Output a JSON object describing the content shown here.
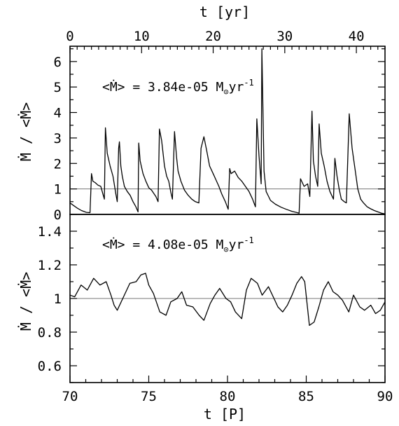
{
  "chart_data": [
    {
      "type": "line",
      "panel": "top",
      "xlabel": "t [yr]",
      "xlim": [
        0,
        44
      ],
      "ylabel": "Ṁ / <Ṁ>",
      "ylim": [
        0,
        6.6
      ],
      "yticks": [
        0,
        1,
        2,
        3,
        4,
        5,
        6
      ],
      "top_xticks": [
        0,
        10,
        20,
        30,
        40
      ],
      "reference_line": 1,
      "annotation": {
        "prefix": "<Ṁ> = 3.84e-05 M",
        "sub": "⊙",
        "unit": "yr",
        "exp": "-1"
      },
      "series": [
        {
          "x": [
            0,
            0.5,
            1.0,
            1.6,
            2.3,
            2.8,
            3.0,
            3.2,
            3.5,
            3.9,
            4.3,
            4.5,
            4.8,
            4.95,
            5.2,
            5.6,
            6.0,
            6.4,
            6.6,
            6.8,
            6.9,
            7.1,
            7.3,
            7.6,
            8.0,
            8.4,
            8.8,
            9.2,
            9.5,
            9.6,
            9.8,
            10.2,
            10.6,
            11.0,
            11.4,
            12.0,
            12.3,
            12.5,
            12.8,
            13.2,
            13.5,
            13.8,
            14.1,
            14.3,
            14.6,
            14.9,
            15.1,
            15.5,
            16.0,
            16.5,
            17.0,
            17.5,
            18.0,
            18.3,
            18.7,
            19.1,
            19.5,
            20.0,
            20.4,
            20.8,
            21.2,
            21.7,
            22.1,
            22.3,
            22.5,
            23.0,
            23.5,
            24.0,
            24.5,
            25.0,
            25.5,
            25.9,
            26.1,
            26.4,
            26.7,
            26.8,
            27.1,
            27.4,
            28.0,
            28.7,
            29.5,
            30.2,
            31.0,
            31.6,
            32.0,
            32.2,
            32.7,
            33.2,
            33.5,
            33.8,
            34.0,
            34.3,
            34.6,
            34.8,
            35.1,
            35.5,
            35.9,
            36.3,
            36.8,
            37.0,
            37.3,
            37.6,
            37.9,
            38.3,
            38.6,
            39.0,
            39.4,
            39.9,
            40.2,
            40.6,
            41.0,
            41.5,
            42.0,
            42.5,
            43.0,
            43.5,
            44.0
          ],
          "y": [
            0.45,
            0.35,
            0.25,
            0.15,
            0.08,
            0.07,
            1.6,
            1.3,
            1.25,
            1.15,
            1.1,
            0.9,
            0.6,
            3.4,
            2.4,
            1.9,
            1.5,
            0.8,
            0.5,
            2.6,
            2.85,
            1.9,
            1.5,
            1.1,
            0.9,
            0.75,
            0.5,
            0.3,
            0.1,
            2.8,
            2.1,
            1.6,
            1.3,
            1.05,
            0.95,
            0.7,
            0.5,
            3.35,
            2.9,
            1.9,
            1.5,
            1.3,
            0.85,
            0.6,
            3.25,
            2.2,
            1.7,
            1.3,
            0.95,
            0.75,
            0.6,
            0.5,
            0.45,
            2.6,
            3.05,
            2.5,
            1.9,
            1.6,
            1.35,
            1.1,
            0.8,
            0.5,
            0.2,
            1.8,
            1.6,
            1.7,
            1.45,
            1.3,
            1.1,
            0.9,
            0.6,
            0.3,
            3.75,
            2.3,
            1.2,
            6.5,
            1.7,
            0.9,
            0.55,
            0.4,
            0.28,
            0.2,
            0.12,
            0.08,
            0.05,
            1.4,
            1.1,
            1.2,
            0.7,
            4.05,
            2.1,
            1.5,
            1.1,
            3.55,
            2.4,
            1.9,
            1.3,
            0.9,
            0.6,
            2.2,
            1.5,
            1.0,
            0.6,
            0.5,
            0.45,
            3.95,
            2.6,
            1.6,
            1.0,
            0.6,
            0.45,
            0.3,
            0.22,
            0.15,
            0.1,
            0.05,
            0.02
          ]
        }
      ]
    },
    {
      "type": "line",
      "panel": "bottom",
      "xlabel": "t [P]",
      "xlim": [
        70,
        90
      ],
      "xticks": [
        70,
        75,
        80,
        85,
        90
      ],
      "ylabel": "Ṁ / <Ṁ>",
      "ylim": [
        0.5,
        1.5
      ],
      "yticks": [
        0.6,
        0.8,
        1,
        1.2,
        1.4
      ],
      "reference_line": 1,
      "annotation": {
        "prefix": "<Ṁ> = 4.08e-05 M",
        "sub": "⊙",
        "unit": "yr",
        "exp": "-1"
      },
      "series": [
        {
          "x": [
            70.0,
            70.3,
            70.7,
            71.1,
            71.5,
            71.9,
            72.3,
            72.6,
            72.8,
            73.0,
            73.4,
            73.8,
            74.2,
            74.5,
            74.8,
            75.0,
            75.3,
            75.7,
            76.1,
            76.4,
            76.8,
            77.1,
            77.4,
            77.8,
            78.2,
            78.5,
            78.9,
            79.2,
            79.5,
            79.9,
            80.2,
            80.5,
            80.9,
            81.2,
            81.5,
            81.9,
            82.2,
            82.6,
            82.9,
            83.2,
            83.5,
            83.8,
            84.1,
            84.4,
            84.7,
            84.9,
            85.2,
            85.5,
            85.8,
            86.1,
            86.4,
            86.7,
            87.0,
            87.3,
            87.7,
            88.0,
            88.4,
            88.7,
            89.1,
            89.4,
            89.7,
            90.0
          ],
          "y": [
            1.02,
            1.01,
            1.08,
            1.05,
            1.12,
            1.08,
            1.1,
            1.02,
            0.96,
            0.93,
            1.01,
            1.09,
            1.1,
            1.14,
            1.15,
            1.08,
            1.03,
            0.92,
            0.9,
            0.98,
            1.0,
            1.04,
            0.96,
            0.95,
            0.9,
            0.87,
            0.97,
            1.02,
            1.06,
            1.0,
            0.98,
            0.92,
            0.88,
            1.05,
            1.12,
            1.09,
            1.02,
            1.07,
            1.01,
            0.95,
            0.92,
            0.96,
            1.02,
            1.09,
            1.13,
            1.1,
            0.84,
            0.86,
            0.95,
            1.05,
            1.1,
            1.04,
            1.02,
            0.99,
            0.92,
            1.02,
            0.95,
            0.93,
            0.96,
            0.91,
            0.93,
            0.98
          ]
        }
      ]
    }
  ]
}
